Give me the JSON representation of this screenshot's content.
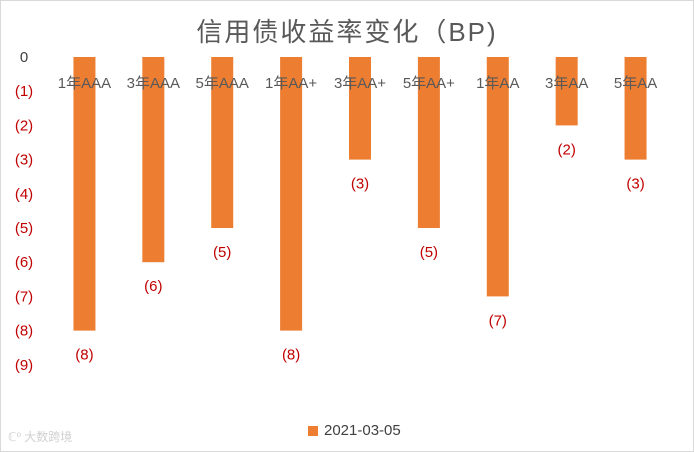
{
  "chart_data": {
    "type": "bar",
    "title": "信用债收益率变化（BP)",
    "categories": [
      "1年AAA",
      "3年AAA",
      "5年AAA",
      "1年AA+",
      "3年AA+",
      "5年AA+",
      "1年AA",
      "3年AA",
      "5年AA"
    ],
    "series": [
      {
        "name": "2021-03-05",
        "values": [
          -8,
          -6,
          -5,
          -8,
          -3,
          -5,
          -7,
          -2,
          -3
        ]
      }
    ],
    "data_labels": [
      "(8)",
      "(6)",
      "(5)",
      "(8)",
      "(3)",
      "(5)",
      "(7)",
      "(2)",
      "(3)"
    ],
    "ylim": [
      -9,
      0
    ],
    "yticks": [
      0,
      -1,
      -2,
      -3,
      -4,
      -5,
      -6,
      -7,
      -8,
      -9
    ],
    "ytick_labels": [
      "0",
      "(1)",
      "(2)",
      "(3)",
      "(4)",
      "(5)",
      "(6)",
      "(7)",
      "(8)",
      "(9)"
    ],
    "bar_color": "#ED7D31",
    "negative_label_color": "#C00000",
    "grid": false,
    "legend_position": "bottom"
  },
  "watermark": {
    "text": "大数跨境",
    "icon": "brand-logo-icon",
    "icon_glyph": "ℂ⁰"
  }
}
